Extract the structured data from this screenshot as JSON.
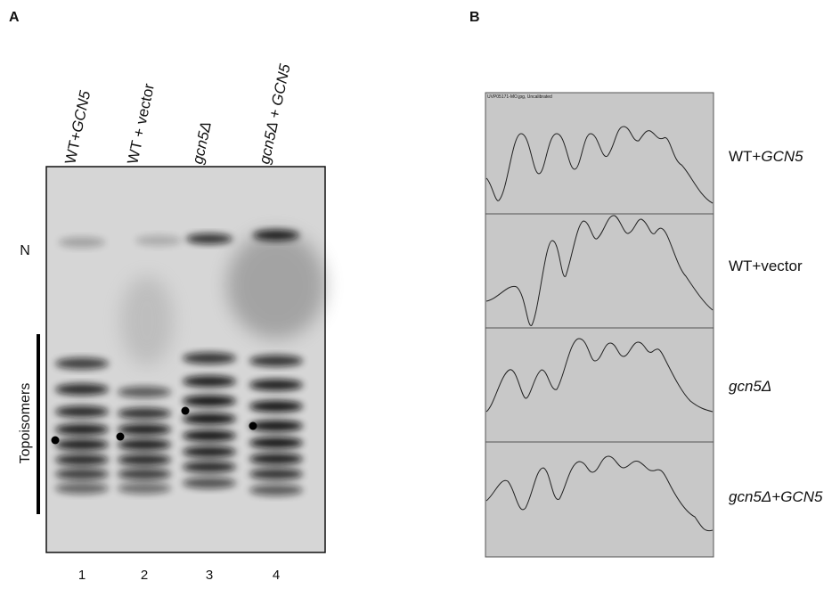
{
  "panel_a": {
    "label": "A",
    "lanes": [
      {
        "name": [
          {
            "text": "WT+",
            "italic": false
          },
          {
            "text": "GCN5",
            "italic": true
          }
        ],
        "number": "1"
      },
      {
        "name": [
          {
            "text": "WT + vector",
            "italic": false
          }
        ],
        "number": "2"
      },
      {
        "name": [
          {
            "text": "gcn5Δ",
            "italic": true
          }
        ],
        "number": "3"
      },
      {
        "name": [
          {
            "text": "gcn5Δ + GCN5",
            "italic": true
          }
        ],
        "number": "4"
      }
    ],
    "marker_n": "N",
    "bracket_label": "Topoisomers"
  },
  "panel_b": {
    "label": "B",
    "image_caption": "UVP05171-MO.jpg, Uncalibrated",
    "traces": [
      {
        "name": [
          {
            "text": "WT+",
            "italic": false
          },
          {
            "text": "GCN5",
            "italic": true
          }
        ]
      },
      {
        "name": [
          {
            "text": "WT+vector",
            "italic": false
          }
        ]
      },
      {
        "name": [
          {
            "text": "gcn5Δ",
            "italic": true
          }
        ]
      },
      {
        "name": [
          {
            "text": "gcn5Δ+GCN5",
            "italic": true
          }
        ]
      }
    ]
  }
}
